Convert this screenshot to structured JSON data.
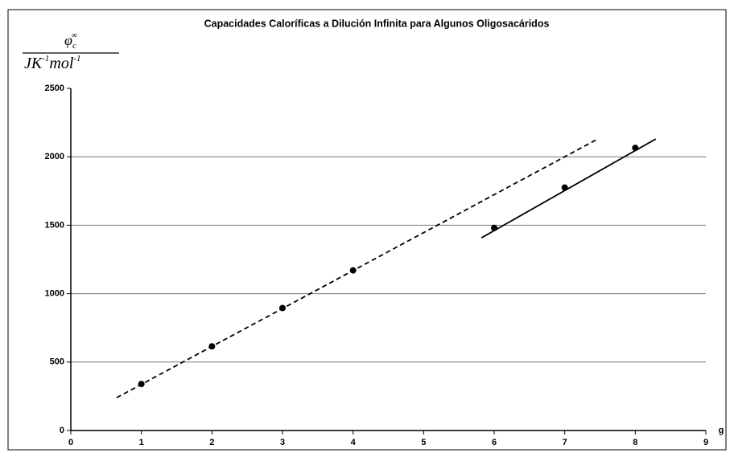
{
  "chart_data": {
    "type": "scatter",
    "title": "Capacidades Caloríficas a Dilución Infinita para Algunos Oligosacáridos",
    "y_label_numerator": {
      "base": "φ",
      "sub": "c",
      "sup": "∞"
    },
    "y_label_denominator": [
      {
        "base": "JK",
        "sup": "-1"
      },
      {
        "base": "mol",
        "sup": "-1"
      }
    ],
    "x_label": "g",
    "x": [
      1,
      2,
      3,
      4,
      6,
      7,
      8
    ],
    "values": [
      340,
      615,
      895,
      1170,
      1480,
      1775,
      2065
    ],
    "color": "#000000",
    "trend_lines": [
      {
        "x": [
          0.65,
          7.45
        ],
        "values": [
          240,
          2125
        ],
        "dashed": true
      },
      {
        "x": [
          5.82,
          8.29
        ],
        "values": [
          1408,
          2130
        ],
        "dashed": false
      }
    ],
    "xlim": [
      0,
      9
    ],
    "xticks": [
      0,
      1,
      2,
      3,
      4,
      5,
      6,
      7,
      8,
      9
    ],
    "ylim": [
      0,
      2500
    ],
    "yticks": [
      0,
      500,
      1000,
      1500,
      2000,
      2500
    ],
    "grid": true
  }
}
